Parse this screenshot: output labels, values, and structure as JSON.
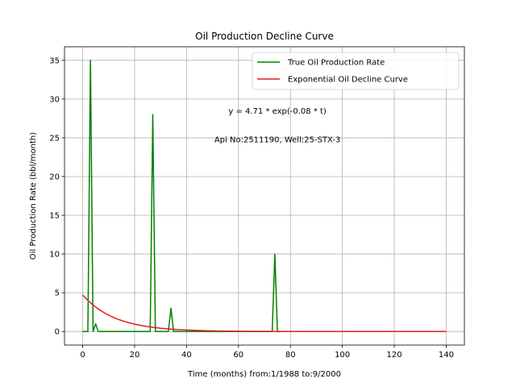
{
  "chart_data": {
    "type": "line",
    "title": "Oil Production Decline Curve",
    "xlabel": "Time (months) from:1/1988 to:9/2000",
    "ylabel": "Oil Production Rate (bbl/month)",
    "xlim": [
      -7,
      147
    ],
    "ylim": [
      -1.75,
      36.75
    ],
    "xticks": [
      0,
      20,
      40,
      60,
      80,
      100,
      120,
      140
    ],
    "yticks": [
      0,
      5,
      10,
      15,
      20,
      25,
      30,
      35
    ],
    "grid": true,
    "legend_position": "top-right",
    "series": [
      {
        "name": "True Oil Production Rate",
        "color": "#008000",
        "x": [
          0,
          1,
          2,
          3,
          4,
          5,
          6,
          7,
          8,
          25,
          26,
          27,
          28,
          29,
          32,
          33,
          34,
          35,
          36,
          72,
          73,
          74,
          75,
          76
        ],
        "y": [
          0,
          0,
          0,
          35,
          0,
          1,
          0,
          0,
          0,
          0,
          0,
          28,
          0,
          0,
          0,
          0,
          3,
          0,
          0,
          0,
          0,
          10,
          0,
          0
        ]
      },
      {
        "name": "Exponential Oil Decline Curve",
        "color": "#e31a1c",
        "function": {
          "a": 4.71,
          "b": 0.08,
          "x_start": 0,
          "x_end": 140
        }
      }
    ],
    "annotations": [
      {
        "text": "y = 4.71 * exp(-0.08 * t)",
        "x": 75,
        "y": 28.5
      },
      {
        "text": "Api No:2511190, Well:25-STX-3",
        "x": 75,
        "y": 24.8
      }
    ]
  }
}
